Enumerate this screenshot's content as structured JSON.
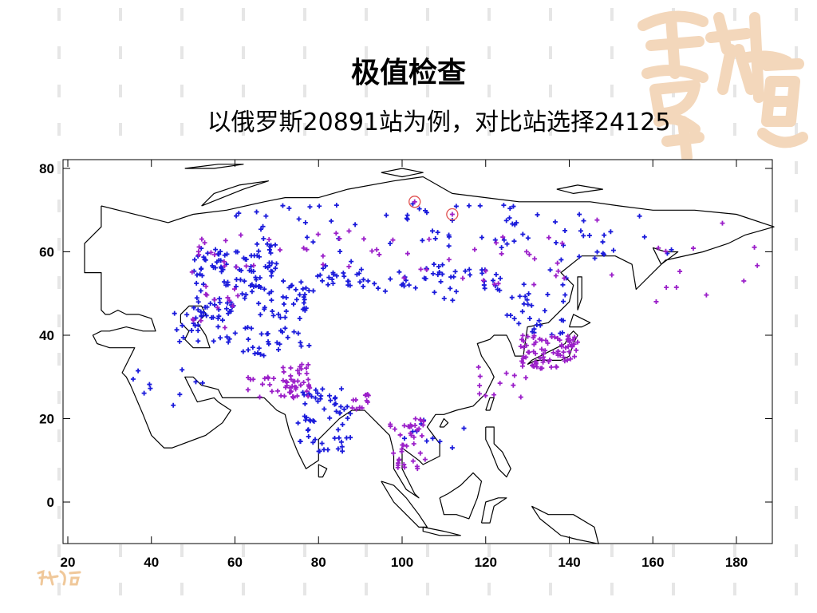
{
  "slide": {
    "title": "极值检查",
    "subtitle": "以俄罗斯20891站为例，对比站选择24125"
  },
  "map": {
    "projection": "equirectangular",
    "lon_range": [
      18,
      190
    ],
    "lat_range": [
      -10,
      82
    ],
    "x_ticks": [
      "20",
      "40",
      "60",
      "80",
      "100",
      "120",
      "140",
      "160",
      "180"
    ],
    "y_ticks": [
      "80",
      "60",
      "40",
      "20",
      "0"
    ],
    "marker": "plus",
    "colors": {
      "blue_stations": "#1a1adb",
      "purple_stations": "#9b1fc9",
      "highlight_circle": "#e05050",
      "coastline": "#000000"
    },
    "highlighted_stations": [
      {
        "lon": 103,
        "lat": 72
      },
      {
        "lon": 112,
        "lat": 69
      }
    ],
    "clusters": {
      "blue": [
        {
          "lon": [
            50,
            70
          ],
          "lat": [
            55,
            62
          ],
          "n": 60
        },
        {
          "lon": [
            50,
            80
          ],
          "lat": [
            44,
            55
          ],
          "n": 90
        },
        {
          "lon": [
            45,
            60
          ],
          "lat": [
            38,
            48
          ],
          "n": 30
        },
        {
          "lon": [
            80,
            110
          ],
          "lat": [
            50,
            58
          ],
          "n": 50
        },
        {
          "lon": [
            110,
            140
          ],
          "lat": [
            48,
            56
          ],
          "n": 30
        },
        {
          "lon": [
            60,
            130
          ],
          "lat": [
            60,
            72
          ],
          "n": 55
        },
        {
          "lon": [
            130,
            165
          ],
          "lat": [
            58,
            70
          ],
          "n": 25
        },
        {
          "lon": [
            75,
            88
          ],
          "lat": [
            12,
            28
          ],
          "n": 60
        },
        {
          "lon": [
            125,
            140
          ],
          "lat": [
            40,
            50
          ],
          "n": 25
        },
        {
          "lon": [
            60,
            78
          ],
          "lat": [
            35,
            42
          ],
          "n": 30
        },
        {
          "lon": [
            100,
            115
          ],
          "lat": [
            10,
            22
          ],
          "n": 10
        },
        {
          "lon": [
            35,
            55
          ],
          "lat": [
            22,
            32
          ],
          "n": 10
        }
      ],
      "purple": [
        {
          "lon": [
            70,
            78
          ],
          "lat": [
            25,
            33
          ],
          "n": 45
        },
        {
          "lon": [
            63,
            70
          ],
          "lat": [
            25,
            30
          ],
          "n": 12
        },
        {
          "lon": [
            88,
            92
          ],
          "lat": [
            22,
            26
          ],
          "n": 12
        },
        {
          "lon": [
            97,
            106
          ],
          "lat": [
            8,
            20
          ],
          "n": 40
        },
        {
          "lon": [
            128,
            142
          ],
          "lat": [
            32,
            40
          ],
          "n": 80
        },
        {
          "lon": [
            118,
            130
          ],
          "lat": [
            25,
            33
          ],
          "n": 12
        },
        {
          "lon": [
            48,
            62
          ],
          "lat": [
            40,
            66
          ],
          "n": 25
        },
        {
          "lon": [
            100,
            140
          ],
          "lat": [
            52,
            64
          ],
          "n": 25
        },
        {
          "lon": [
            145,
            185
          ],
          "lat": [
            48,
            68
          ],
          "n": 14
        },
        {
          "lon": [
            60,
            100
          ],
          "lat": [
            55,
            65
          ],
          "n": 20
        }
      ]
    }
  }
}
